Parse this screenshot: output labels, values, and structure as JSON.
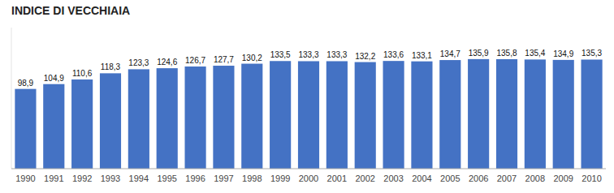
{
  "chart_data": {
    "type": "bar",
    "title": "INDICE DI VECCHIAIA",
    "categories": [
      "1990",
      "1991",
      "1992",
      "1993",
      "1994",
      "1995",
      "1996",
      "1997",
      "1998",
      "1999",
      "2000",
      "2001",
      "2002",
      "2003",
      "2004",
      "2005",
      "2006",
      "2007",
      "2008",
      "2009",
      "2010"
    ],
    "values": [
      98.9,
      104.9,
      110.6,
      118.3,
      123.3,
      124.6,
      126.7,
      127.7,
      130.2,
      133.5,
      133.3,
      133.3,
      132.2,
      133.6,
      133.1,
      134.7,
      135.9,
      135.8,
      135.4,
      134.9,
      135.3
    ],
    "value_labels": [
      "98,9",
      "104,9",
      "110,6",
      "118,3",
      "123,3",
      "124,6",
      "126,7",
      "127,7",
      "130,2",
      "133,5",
      "133,3",
      "133,3",
      "132,2",
      "133,6",
      "133,1",
      "134,7",
      "135,9",
      "135,8",
      "135,4",
      "134,9",
      "135,3"
    ],
    "color": "#4472C4",
    "ylim": [
      0,
      175
    ],
    "grid": false,
    "data_labels": true,
    "tick_labels": "x"
  }
}
